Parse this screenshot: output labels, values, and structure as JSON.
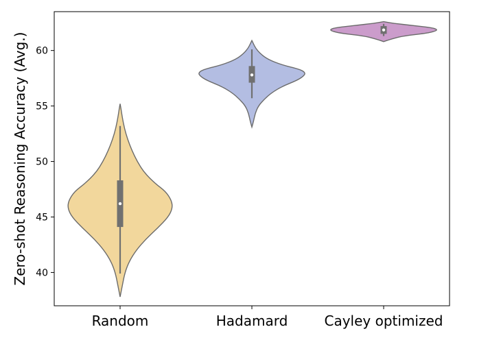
{
  "chart_data": {
    "type": "violin",
    "ylabel": "Zero-shot Reasoning Accuracy (Avg.)",
    "xlabel": "",
    "title": "",
    "ylim": [
      37.0,
      63.5
    ],
    "yticks": [
      40,
      45,
      50,
      55,
      60
    ],
    "categories": [
      "Random",
      "Hadamard",
      "Cayley optimized"
    ],
    "grid": false,
    "legend": "none",
    "series": [
      {
        "category": "Random",
        "color": "#f2d79c",
        "min": 39.9,
        "q1": 44.1,
        "median": 46.2,
        "q3": 48.3,
        "max": 53.2,
        "kde_y": [
          37.8,
          38.8,
          40.0,
          41.0,
          42.0,
          43.0,
          44.0,
          45.0,
          45.8,
          46.5,
          47.3,
          48.0,
          49.0,
          50.0,
          51.0,
          52.0,
          53.0,
          54.0,
          54.8,
          55.2
        ],
        "kde_w": [
          0.0,
          0.04,
          0.09,
          0.17,
          0.3,
          0.48,
          0.7,
          0.9,
          0.98,
          0.96,
          0.85,
          0.66,
          0.45,
          0.32,
          0.22,
          0.14,
          0.08,
          0.04,
          0.015,
          0.0
        ]
      },
      {
        "category": "Hadamard",
        "color": "#b3bde2",
        "min": 55.7,
        "q1": 57.1,
        "median": 57.8,
        "q3": 58.6,
        "max": 60.1,
        "kde_y": [
          53.1,
          53.6,
          54.3,
          55.0,
          55.6,
          56.2,
          56.8,
          57.3,
          57.7,
          58.0,
          58.3,
          58.7,
          59.2,
          59.7,
          60.2,
          60.7,
          60.9
        ],
        "kde_w": [
          0.0,
          0.03,
          0.06,
          0.12,
          0.23,
          0.37,
          0.58,
          0.84,
          0.97,
          1.0,
          0.9,
          0.56,
          0.3,
          0.16,
          0.07,
          0.02,
          0.0
        ]
      },
      {
        "category": "Cayley optimized",
        "color": "#cb9ccb",
        "min": 61.3,
        "q1": 61.5,
        "median": 61.85,
        "q3": 62.2,
        "max": 62.4,
        "kde_y": [
          60.8,
          61.0,
          61.3,
          61.55,
          61.75,
          61.9,
          62.05,
          62.25,
          62.45,
          62.6
        ],
        "kde_w": [
          0.0,
          0.12,
          0.35,
          0.8,
          0.97,
          1.0,
          0.9,
          0.55,
          0.18,
          0.0
        ]
      }
    ]
  }
}
